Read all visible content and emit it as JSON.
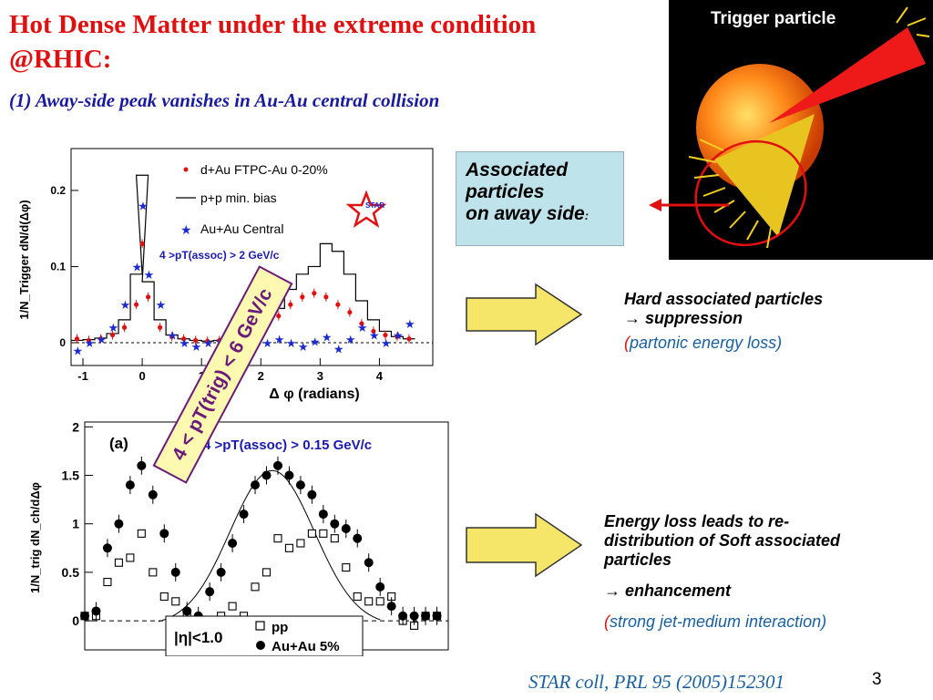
{
  "slide": {
    "title_line1": "Hot Dense Matter under the extreme condition",
    "title_line2": "@RHIC:",
    "subtitle": "(1) Away-side peak vanishes in Au-Au central collision",
    "assoc_box": {
      "line1": "Associated",
      "line2": "particles",
      "line3": "on away side",
      "colon": ":"
    },
    "note1": {
      "line1": "Hard associated particles",
      "line2": "→ suppression",
      "open_paren": "(",
      "paren_text": "partonic energy loss)"
    },
    "note2": {
      "line1": "Energy loss leads to re-",
      "line2": "distribution of Soft associated",
      "line3": "particles",
      "line4": "→ enhancement",
      "open_paren": "(",
      "paren_text": "strong jet-medium interaction)"
    },
    "citation": "STAR coll, PRL 95 (2005)152301",
    "page_number": "3",
    "trigger_label": "Trigger particle",
    "rotated_box": "4 < pT(trig) < 6 GeV/c",
    "colors": {
      "title": "#e01010",
      "subtitle": "#1a1aa0",
      "arrow_fill": "#f5e66a",
      "box_bg": "#bfe3ea"
    }
  },
  "chart_data": [
    {
      "type": "scatter",
      "xlabel": "Δ φ (radians)",
      "ylabel": "1/N_Trigger dN/d(Δφ)",
      "xlim": [
        -1.2,
        4.9
      ],
      "ylim": [
        -0.03,
        0.255
      ],
      "xticks": [
        "-1",
        "0",
        "1",
        "2",
        "3",
        "4"
      ],
      "yticks": [
        "0",
        "0.1",
        "0.2"
      ],
      "annotation": "4 >pT(assoc) > 2 GeV/c",
      "legend_position": "top-right",
      "legend": [
        "d+Au FTPC-Au 0-20%",
        "p+p min. bias",
        "Au+Au Central"
      ],
      "logo": "STAR",
      "series": [
        {
          "name": "d+Au FTPC-Au 0-20%",
          "marker": "red-dot",
          "x": [
            -1.1,
            -0.9,
            -0.7,
            -0.5,
            -0.3,
            -0.1,
            0.0,
            0.1,
            0.3,
            0.5,
            0.7,
            0.9,
            1.1,
            1.3,
            1.5,
            1.7,
            1.9,
            2.1,
            2.3,
            2.5,
            2.7,
            2.9,
            3.1,
            3.3,
            3.5,
            3.7,
            3.9,
            4.1,
            4.3,
            4.5
          ],
          "y": [
            0.005,
            0.003,
            0.005,
            0.01,
            0.02,
            0.05,
            0.13,
            0.06,
            0.02,
            0.008,
            0.005,
            0.003,
            0.002,
            0.003,
            0.005,
            0.01,
            0.015,
            0.025,
            0.035,
            0.05,
            0.06,
            0.065,
            0.06,
            0.05,
            0.04,
            0.025,
            0.015,
            0.01,
            0.008,
            0.005
          ]
        },
        {
          "name": "p+p min. bias",
          "marker": "line",
          "x": [
            -1.1,
            -0.9,
            -0.7,
            -0.5,
            -0.3,
            -0.1,
            0.0,
            0.1,
            0.3,
            0.5,
            0.7,
            0.9,
            1.1,
            1.3,
            1.5,
            1.7,
            1.9,
            2.1,
            2.3,
            2.5,
            2.7,
            2.9,
            3.1,
            3.3,
            3.5,
            3.7,
            3.9,
            4.1,
            4.3,
            4.5
          ],
          "y": [
            0.003,
            0.004,
            0.006,
            0.012,
            0.03,
            0.09,
            0.22,
            0.08,
            0.03,
            0.01,
            0.005,
            0.003,
            0.002,
            0.003,
            0.006,
            0.01,
            0.02,
            0.03,
            0.045,
            0.07,
            0.09,
            0.1,
            0.13,
            0.12,
            0.09,
            0.055,
            0.03,
            0.015,
            0.008,
            0.005
          ]
        },
        {
          "name": "Au+Au Central",
          "marker": "blue-star",
          "x": [
            -1.1,
            -0.9,
            -0.7,
            -0.5,
            -0.3,
            -0.1,
            0.0,
            0.1,
            0.3,
            0.5,
            0.7,
            0.9,
            1.1,
            1.3,
            1.5,
            1.7,
            1.9,
            2.1,
            2.3,
            2.5,
            2.7,
            2.9,
            3.1,
            3.3,
            3.5,
            3.7,
            3.9,
            4.1,
            4.3,
            4.5
          ],
          "y": [
            -0.01,
            0.0,
            0.005,
            0.02,
            0.05,
            0.1,
            0.18,
            0.09,
            0.05,
            0.01,
            0.0,
            -0.005,
            0.0,
            0.002,
            -0.005,
            0.0,
            -0.002,
            0.0,
            0.005,
            0.0,
            -0.005,
            0.002,
            0.008,
            -0.008,
            0.005,
            0.02,
            0.01,
            0.0,
            0.01,
            0.025
          ]
        }
      ]
    },
    {
      "type": "scatter",
      "panel_label": "(a)",
      "xlabel": "",
      "ylabel": "1/N_trig dN_ch/dΔφ",
      "xlim": [
        0,
        6.4
      ],
      "ylim": [
        -0.3,
        2.05
      ],
      "yticks": [
        "0",
        "0.5",
        "1",
        "1.5",
        "2"
      ],
      "annotation": "4 >pT(assoc) > 0.15 GeV/c",
      "legend_position": "bottom-center",
      "legend_title": "|η|<1.0",
      "legend": [
        "pp",
        "Au+Au 5%"
      ],
      "series": [
        {
          "name": "pp",
          "marker": "open-square",
          "x": [
            0.0,
            0.2,
            0.4,
            0.6,
            0.8,
            1.0,
            1.2,
            1.4,
            1.6,
            1.8,
            2.0,
            2.2,
            2.4,
            2.6,
            2.8,
            3.0,
            3.2,
            3.4,
            3.6,
            3.8,
            4.0,
            4.2,
            4.4,
            4.6,
            4.8,
            5.0,
            5.2,
            5.4,
            5.6,
            5.8,
            6.0,
            6.2
          ],
          "y": [
            0.05,
            0.05,
            0.4,
            0.6,
            0.65,
            0.9,
            0.5,
            0.25,
            0.2,
            0.05,
            -0.05,
            -0.1,
            0.05,
            0.15,
            0.05,
            0.35,
            0.5,
            0.85,
            0.75,
            0.8,
            0.9,
            0.9,
            0.85,
            0.55,
            0.25,
            0.2,
            0.2,
            0.25,
            0.0,
            -0.05,
            0.05,
            0.05
          ]
        },
        {
          "name": "Au+Au 5%",
          "marker": "filled-circle",
          "x": [
            0.0,
            0.2,
            0.4,
            0.6,
            0.8,
            1.0,
            1.2,
            1.4,
            1.6,
            1.8,
            2.0,
            2.2,
            2.4,
            2.6,
            2.8,
            3.0,
            3.2,
            3.4,
            3.6,
            3.8,
            4.0,
            4.2,
            4.4,
            4.6,
            4.8,
            5.0,
            5.2,
            5.4,
            5.6,
            5.8,
            6.0,
            6.2
          ],
          "y": [
            0.05,
            0.1,
            0.75,
            1.0,
            1.4,
            1.6,
            1.3,
            0.9,
            0.5,
            0.1,
            0.05,
            0.3,
            0.5,
            0.8,
            1.1,
            1.4,
            1.5,
            1.6,
            1.5,
            1.4,
            1.3,
            1.1,
            1.0,
            0.95,
            0.85,
            0.6,
            0.35,
            0.15,
            0.05,
            0.05,
            0.05,
            0.05
          ]
        }
      ]
    }
  ]
}
